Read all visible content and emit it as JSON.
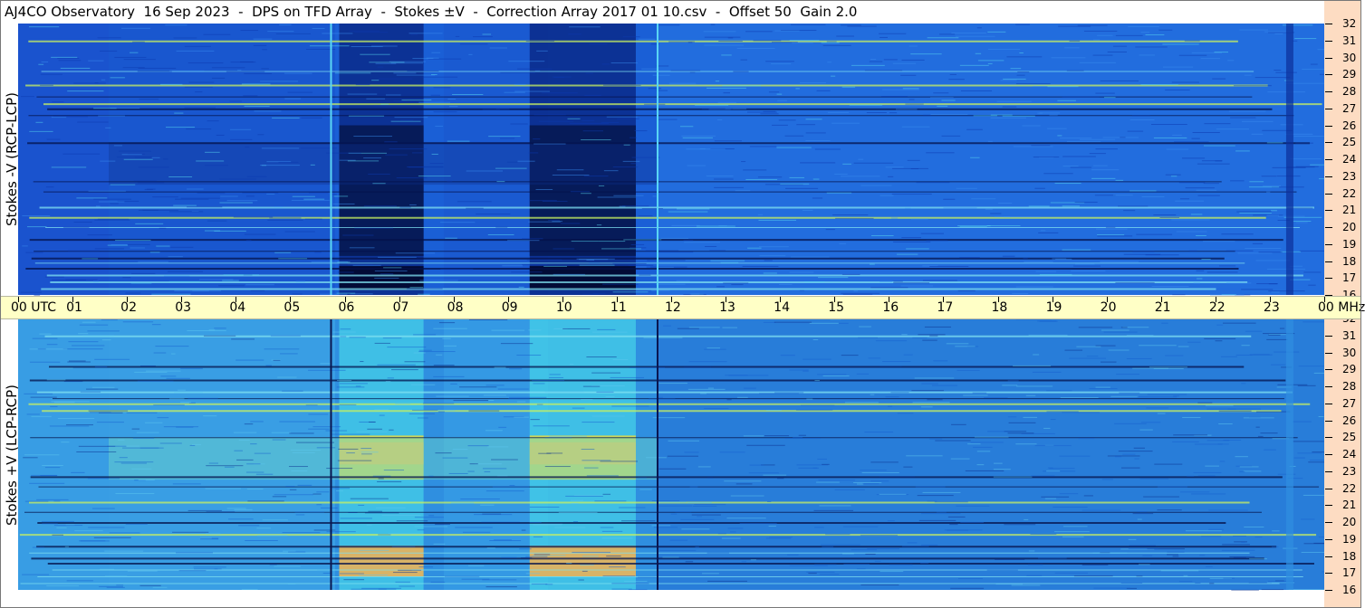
{
  "title": "AJ4CO Observatory  16 Sep 2023  -  DPS on TFD Array  -  Stokes ±V  -  Correction Array 2017 01 10.csv  -  Offset 50  Gain 2.0",
  "panels": {
    "top_label": "Stokes -V (RCP-LCP)",
    "bottom_label": "Stokes +V (LCP-RCP)"
  },
  "colors": {
    "background": "#ffffff",
    "freq_axis_bg": "#fddcc2",
    "time_axis_bg": "#ffffc6",
    "top_base": "#1a5fd6",
    "bottom_base": "#2f8fe0",
    "dark_band": "#061a55",
    "bright_band": "#f5c64a"
  },
  "chart_data": [
    {
      "type": "heatmap",
      "title": "Stokes -V (RCP-LCP)",
      "xlabel": "UTC",
      "ylabel": "MHz",
      "x_range": [
        "00",
        "00"
      ],
      "ylim": [
        16,
        32
      ],
      "x_ticks": [
        "00",
        "01",
        "02",
        "03",
        "04",
        "05",
        "06",
        "07",
        "08",
        "09",
        "10",
        "11",
        "12",
        "13",
        "14",
        "15",
        "16",
        "17",
        "18",
        "19",
        "20",
        "21",
        "22",
        "23",
        "00"
      ],
      "y_ticks": [
        16,
        17,
        18,
        19,
        20,
        21,
        22,
        23,
        24,
        25,
        26,
        27,
        28,
        29,
        30,
        31,
        32
      ],
      "colormap": "jet",
      "features": {
        "dark_blocks_utc": [
          [
            5.9,
            7.45
          ],
          [
            9.4,
            11.35
          ]
        ],
        "marker_lines_utc": [
          5.75,
          11.75
        ]
      }
    },
    {
      "type": "heatmap",
      "title": "Stokes +V (LCP-RCP)",
      "xlabel": "UTC",
      "ylabel": "MHz",
      "x_range": [
        "00",
        "00"
      ],
      "ylim": [
        16,
        32
      ],
      "x_ticks": [
        "00",
        "01",
        "02",
        "03",
        "04",
        "05",
        "06",
        "07",
        "08",
        "09",
        "10",
        "11",
        "12",
        "13",
        "14",
        "15",
        "16",
        "17",
        "18",
        "19",
        "20",
        "21",
        "22",
        "23",
        "00"
      ],
      "y_ticks": [
        16,
        17,
        18,
        19,
        20,
        21,
        22,
        23,
        24,
        25,
        26,
        27,
        28,
        29,
        30,
        31,
        32
      ],
      "colormap": "jet",
      "features": {
        "bright_blocks_utc": [
          [
            5.9,
            7.45
          ],
          [
            9.4,
            11.35
          ]
        ],
        "marker_lines_utc": [
          5.75,
          11.75
        ]
      }
    }
  ],
  "time_axis": {
    "labels": [
      "00  UTC",
      "01",
      "02",
      "03",
      "04",
      "05",
      "06",
      "07",
      "08",
      "09",
      "10",
      "11",
      "12",
      "13",
      "14",
      "15",
      "16",
      "17",
      "18",
      "19",
      "20",
      "21",
      "22",
      "23",
      "00 MHz"
    ]
  },
  "freq_axis": {
    "labels": [
      "32",
      "31",
      "30",
      "29",
      "28",
      "27",
      "26",
      "25",
      "24",
      "23",
      "22",
      "21",
      "20",
      "19",
      "18",
      "17",
      "16"
    ]
  }
}
